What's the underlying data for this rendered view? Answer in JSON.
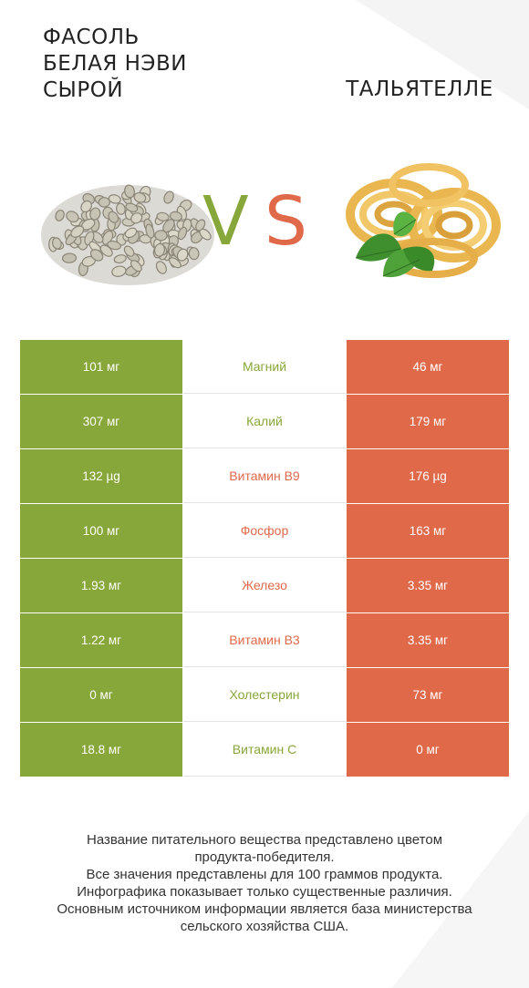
{
  "header": {
    "left_title_lines": [
      "ФАСОЛЬ",
      "БЕЛАЯ НЭВИ",
      "СЫРОЙ"
    ],
    "right_title": "ТАЛЬЯТЕЛЛЕ",
    "vs_v": "V",
    "vs_s": "S"
  },
  "colors": {
    "winner_left": "#88a73a",
    "winner_right": "#e0694a"
  },
  "rows": [
    {
      "left": "101 мг",
      "nutrient": "Магний",
      "right": "46 мг",
      "winner": "left"
    },
    {
      "left": "307 мг",
      "nutrient": "Калий",
      "right": "179 мг",
      "winner": "left"
    },
    {
      "left": "132 µg",
      "nutrient": "Витамин B9",
      "right": "176 µg",
      "winner": "right"
    },
    {
      "left": "100 мг",
      "nutrient": "Фосфор",
      "right": "163 мг",
      "winner": "right"
    },
    {
      "left": "1.93 мг",
      "nutrient": "Железо",
      "right": "3.35 мг",
      "winner": "right"
    },
    {
      "left": "1.22 мг",
      "nutrient": "Витамин B3",
      "right": "3.35 мг",
      "winner": "right"
    },
    {
      "left": "0 мг",
      "nutrient": "Холестерин",
      "right": "73 мг",
      "winner": "left"
    },
    {
      "left": "18.8 мг",
      "nutrient": "Витамин C",
      "right": "0 мг",
      "winner": "left"
    }
  ],
  "footer": {
    "lines": [
      "Название питательного вещества представлено цветом",
      "продукта-победителя.",
      "Все значения представлены для 100 граммов продукта.",
      "Инфографика показывает только существенные различия.",
      "Основным источником информации является база министерства",
      "сельского хозяйства США."
    ]
  }
}
